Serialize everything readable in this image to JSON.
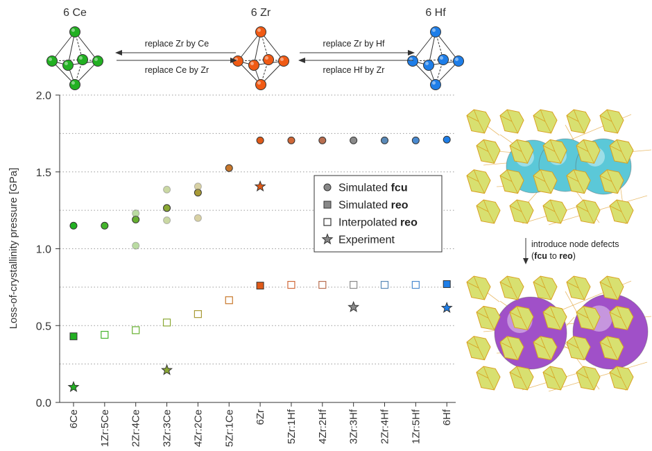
{
  "header": {
    "left_cluster_label": "6 Ce",
    "center_cluster_label": "6 Zr",
    "right_cluster_label": "6 Hf",
    "arrow_left_top": "replace Zr by Ce",
    "arrow_left_bottom": "replace Ce by Zr",
    "arrow_right_top": "replace Zr by Hf",
    "arrow_right_bottom": "replace Hf by Zr",
    "cluster_colors": {
      "Ce": "#22b022",
      "Zr": "#f05a14",
      "Hf": "#1e7ee8"
    }
  },
  "side_panel": {
    "defect_label_line1": "introduce node defects",
    "defect_label_pre": "(",
    "defect_label_fcu": "fcu",
    "defect_label_mid": " to ",
    "defect_label_reo": "reo",
    "defect_label_post": ")",
    "top_sphere_color": "#5bc8d8",
    "bottom_sphere_color": "#a050c8",
    "node_color": "#d8e070"
  },
  "chart_data": {
    "type": "scatter",
    "ylabel": "Loss-of-crystallinity pressure [GPa]",
    "ylim": [
      0.0,
      2.0
    ],
    "yticks": [
      "0.0",
      "0.5",
      "1.0",
      "1.5",
      "2.0"
    ],
    "grid": "dotted horizontal every 0.25",
    "categories": [
      "6Ce",
      "1Zr:5Ce",
      "2Zr:4Ce",
      "3Zr:3Ce",
      "4Zr:2Ce",
      "5Zr:1Ce",
      "6Zr",
      "5Zr:1Hf",
      "4Zr:2Hf",
      "3Zr:3Hf",
      "2Zr:4Hf",
      "1Zr:5Hf",
      "6Hf"
    ],
    "point_colors": [
      "#22b022",
      "#44b42c",
      "#66b030",
      "#8aa834",
      "#a89a36",
      "#c8782c",
      "#e05a18",
      "#d06838",
      "#b86e50",
      "#8a8a8a",
      "#5a8ab8",
      "#4a8ad0",
      "#1e7ee8"
    ],
    "legend": {
      "placement": "center-right",
      "items": [
        {
          "marker": "circle",
          "pre": "Simulated ",
          "bold": "fcu"
        },
        {
          "marker": "square",
          "pre": "Simulated ",
          "bold": "reo"
        },
        {
          "marker": "open-square",
          "pre": "Interpolated ",
          "bold": "reo"
        },
        {
          "marker": "star",
          "pre": "Experiment",
          "bold": ""
        }
      ]
    },
    "series": [
      {
        "name": "Simulated fcu",
        "marker": "circle",
        "values": [
          1.15,
          1.15,
          1.19,
          1.265,
          1.365,
          1.525,
          1.705,
          1.705,
          1.705,
          1.705,
          1.705,
          1.705,
          1.71
        ]
      },
      {
        "name": "Simulated fcu (alternative configurations)",
        "marker": "circle-faded",
        "points": [
          [
            2,
            1.23
          ],
          [
            2,
            1.02
          ],
          [
            3,
            1.385
          ],
          [
            3,
            1.185
          ],
          [
            4,
            1.405
          ],
          [
            4,
            1.2
          ]
        ]
      },
      {
        "name": "Simulated reo",
        "marker": "square",
        "points": [
          [
            0,
            0.43
          ],
          [
            6,
            0.76
          ],
          [
            12,
            0.77
          ]
        ]
      },
      {
        "name": "Interpolated reo",
        "marker": "open-square",
        "points": [
          [
            1,
            0.44
          ],
          [
            2,
            0.47
          ],
          [
            3,
            0.52
          ],
          [
            4,
            0.575
          ],
          [
            5,
            0.665
          ],
          [
            7,
            0.765
          ],
          [
            8,
            0.765
          ],
          [
            9,
            0.765
          ],
          [
            10,
            0.765
          ],
          [
            11,
            0.765
          ]
        ]
      },
      {
        "name": "Experiment",
        "marker": "star",
        "points": [
          [
            0,
            0.1
          ],
          [
            3,
            0.21
          ],
          [
            6,
            1.405
          ],
          [
            9,
            0.62
          ],
          [
            12,
            0.615
          ]
        ]
      }
    ]
  }
}
